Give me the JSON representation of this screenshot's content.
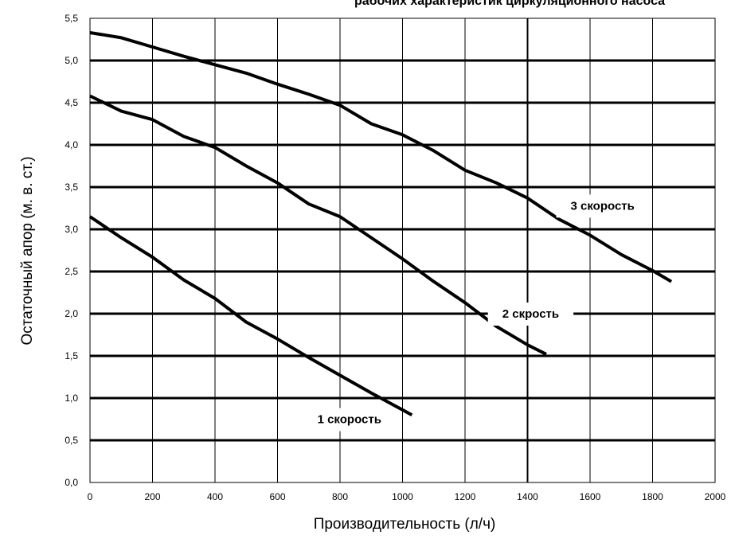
{
  "chart_data": {
    "type": "line",
    "title": "рабочих характеристик циркуляционного насоса",
    "xlabel": "Производительность (л/ч)",
    "ylabel": "Остаточный апор (м. в. ст.)",
    "xlim": [
      0,
      2000
    ],
    "ylim": [
      0,
      5.5
    ],
    "x_ticks": [
      0,
      200,
      400,
      600,
      800,
      1000,
      1200,
      1400,
      1600,
      1800,
      2000
    ],
    "y_ticks": [
      0,
      0.5,
      1.0,
      1.5,
      2.0,
      2.5,
      3.0,
      3.5,
      4.0,
      4.5,
      5.0,
      5.5
    ],
    "x_tick_labels": [
      "0",
      "200",
      "400",
      "600",
      "800",
      "1000",
      "1200",
      "1400",
      "1600",
      "1800",
      "2000"
    ],
    "y_tick_labels": [
      "0,0",
      "0,5",
      "1,0",
      "1,5",
      "2,0",
      "2,5",
      "3,0",
      "3,5",
      "4,0",
      "4,5",
      "5,0",
      "5,5"
    ],
    "grid": true,
    "series": [
      {
        "name": "1 скорость",
        "x": [
          0,
          100,
          200,
          300,
          400,
          500,
          600,
          700,
          800,
          900,
          1030
        ],
        "y": [
          3.15,
          2.9,
          2.67,
          2.4,
          2.18,
          1.9,
          1.7,
          1.48,
          1.27,
          1.06,
          0.8
        ]
      },
      {
        "name": "2 скрость",
        "x": [
          0,
          100,
          200,
          300,
          400,
          500,
          600,
          700,
          800,
          900,
          1000,
          1100,
          1200,
          1300,
          1400,
          1460
        ],
        "y": [
          4.58,
          4.4,
          4.3,
          4.1,
          3.97,
          3.75,
          3.55,
          3.3,
          3.15,
          2.9,
          2.65,
          2.38,
          2.13,
          1.85,
          1.63,
          1.52
        ]
      },
      {
        "name": "3 скорость",
        "x": [
          0,
          100,
          200,
          300,
          400,
          500,
          600,
          700,
          800,
          900,
          1000,
          1100,
          1200,
          1300,
          1400,
          1500,
          1600,
          1700,
          1800,
          1860
        ],
        "y": [
          5.33,
          5.27,
          5.16,
          5.05,
          4.95,
          4.85,
          4.72,
          4.6,
          4.47,
          4.25,
          4.12,
          3.93,
          3.7,
          3.55,
          3.37,
          3.12,
          2.93,
          2.7,
          2.51,
          2.38
        ]
      }
    ],
    "annotations": [
      {
        "series": 0,
        "text": "1 скорость",
        "x": 830,
        "y": 0.75
      },
      {
        "series": 1,
        "text": "2 скрость",
        "x": 1410,
        "y": 2.0
      },
      {
        "series": 2,
        "text": "3 скорость",
        "x": 1640,
        "y": 3.28
      }
    ]
  }
}
